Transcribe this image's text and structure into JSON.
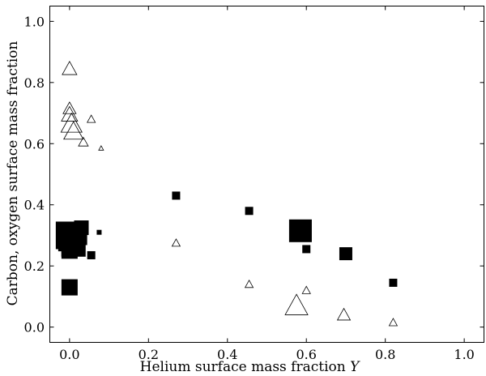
{
  "chart_data": {
    "type": "scatter",
    "title": "",
    "xlabel": "Helium surface mass fraction",
    "xlabel_var": "Y",
    "ylabel": "Carbon, oxygen surface mass fraction",
    "xlim": [
      -0.05,
      1.05
    ],
    "ylim": [
      -0.05,
      1.05
    ],
    "xticks": [
      "0.0",
      "0.2",
      "0.4",
      "0.6",
      "0.8",
      "1.0"
    ],
    "yticks": [
      "0.0",
      "0.2",
      "0.4",
      "0.6",
      "0.8",
      "1.0"
    ],
    "grid": false,
    "legend": "none",
    "marker_color": "#000000",
    "series": [
      {
        "marker": "filled-square",
        "points": [
          {
            "x": 0.0,
            "y": 0.3,
            "s": 17
          },
          {
            "x": 0.0,
            "y": 0.285,
            "s": 14
          },
          {
            "x": 0.01,
            "y": 0.27,
            "s": 15
          },
          {
            "x": 0.0,
            "y": 0.25,
            "s": 10
          },
          {
            "x": 0.01,
            "y": 0.31,
            "s": 13
          },
          {
            "x": 0.02,
            "y": 0.3,
            "s": 12
          },
          {
            "x": 0.03,
            "y": 0.325,
            "s": 9
          },
          {
            "x": 0.0,
            "y": 0.13,
            "s": 10
          },
          {
            "x": 0.055,
            "y": 0.235,
            "s": 5
          },
          {
            "x": 0.075,
            "y": 0.31,
            "s": 3
          },
          {
            "x": 0.27,
            "y": 0.43,
            "s": 5
          },
          {
            "x": 0.455,
            "y": 0.38,
            "s": 5
          },
          {
            "x": 0.585,
            "y": 0.315,
            "s": 14
          },
          {
            "x": 0.6,
            "y": 0.255,
            "s": 5
          },
          {
            "x": 0.7,
            "y": 0.24,
            "s": 8
          },
          {
            "x": 0.82,
            "y": 0.145,
            "s": 5
          }
        ]
      },
      {
        "marker": "open-triangle",
        "points": [
          {
            "x": 0.0,
            "y": 0.845,
            "s": 9
          },
          {
            "x": 0.0,
            "y": 0.715,
            "s": 8
          },
          {
            "x": 0.0,
            "y": 0.695,
            "s": 10
          },
          {
            "x": 0.005,
            "y": 0.665,
            "s": 13
          },
          {
            "x": 0.01,
            "y": 0.64,
            "s": 12
          },
          {
            "x": 0.035,
            "y": 0.605,
            "s": 6
          },
          {
            "x": 0.055,
            "y": 0.68,
            "s": 5
          },
          {
            "x": 0.08,
            "y": 0.585,
            "s": 3
          },
          {
            "x": 0.27,
            "y": 0.275,
            "s": 5
          },
          {
            "x": 0.455,
            "y": 0.14,
            "s": 5
          },
          {
            "x": 0.6,
            "y": 0.12,
            "s": 5
          },
          {
            "x": 0.575,
            "y": 0.07,
            "s": 14
          },
          {
            "x": 0.695,
            "y": 0.04,
            "s": 8
          },
          {
            "x": 0.82,
            "y": 0.015,
            "s": 5
          }
        ]
      }
    ]
  }
}
